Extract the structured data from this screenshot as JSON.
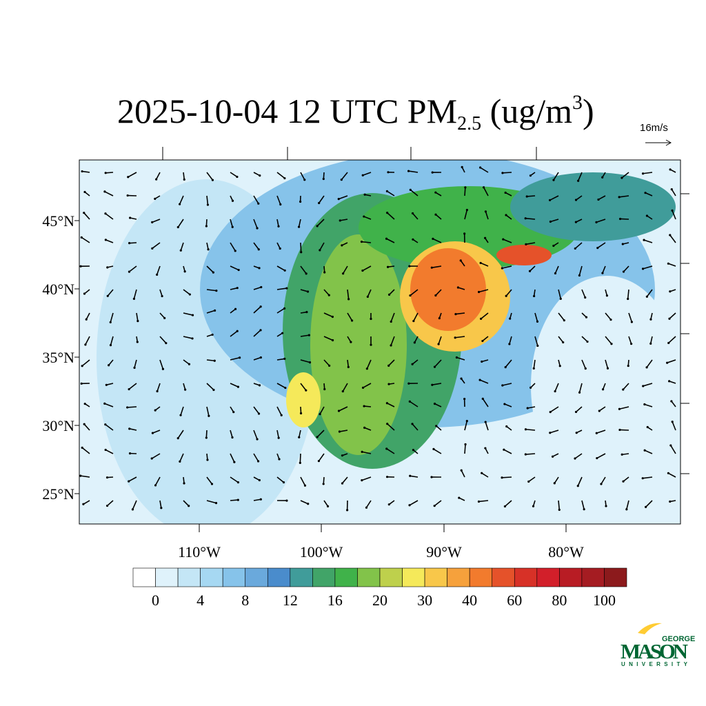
{
  "title": {
    "main": "2025-10-04 12 UTC PM",
    "sub": "2.5",
    "unit": " (ug/m",
    "sup": "3",
    "close": ")"
  },
  "vector_scale": "16m/s",
  "lat_labels": [
    "45°N",
    "40°N",
    "35°N",
    "30°N",
    "25°N"
  ],
  "lon_labels": [
    "110°W",
    "100°W",
    "90°W",
    "80°W"
  ],
  "colorbar": {
    "labels": [
      "0",
      "4",
      "8",
      "12",
      "16",
      "20",
      "30",
      "40",
      "60",
      "80",
      "100"
    ],
    "colors": [
      "#ffffff",
      "#dff2fb",
      "#c4e6f6",
      "#a6d8f2",
      "#86c3ea",
      "#6aa9dc",
      "#4a8ccc",
      "#409c9a",
      "#41a468",
      "#40b24a",
      "#82c34a",
      "#bed04c",
      "#f5e95a",
      "#f8c74a",
      "#f6a13c",
      "#f27b2d",
      "#e5522a",
      "#d73127",
      "#d21f2a",
      "#b81c24",
      "#a51c22",
      "#8c1a1c"
    ]
  },
  "logo": {
    "top": "GEORGE",
    "main": "MASON",
    "bottom": "UNIVERSITY"
  }
}
